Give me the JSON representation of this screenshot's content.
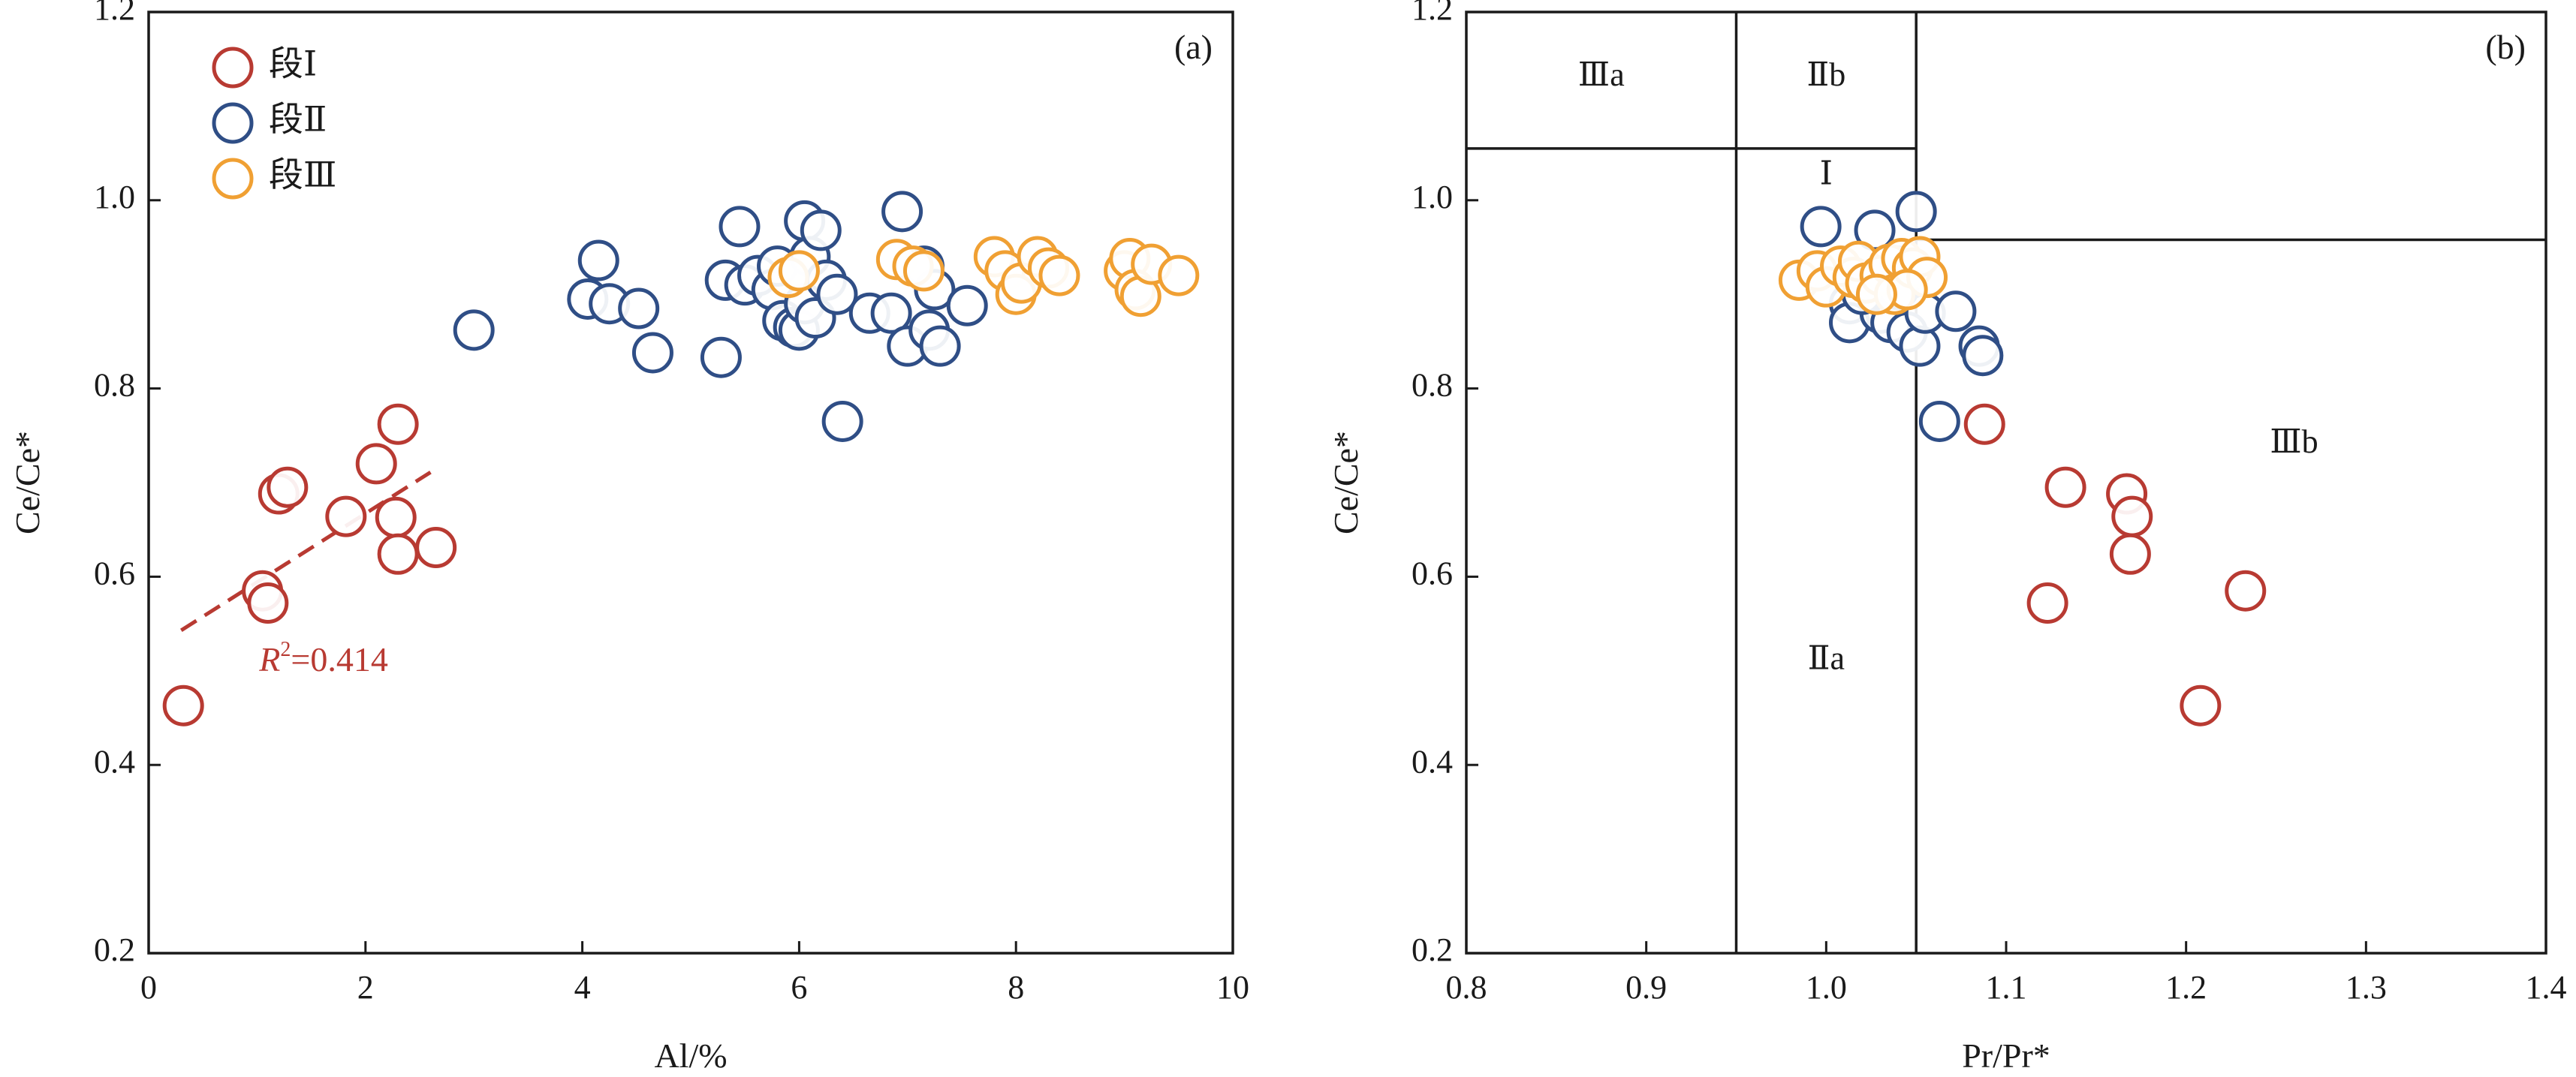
{
  "chart_data": [
    {
      "type": "scatter",
      "panel_label": "(a)",
      "xlabel": "Al/%",
      "ylabel": "Ce/Ce*",
      "xlim": [
        0,
        10
      ],
      "ylim": [
        0.2,
        1.2
      ],
      "x_ticks": [
        0,
        2,
        4,
        6,
        8,
        10
      ],
      "y_ticks": [
        0.2,
        0.4,
        0.6,
        0.8,
        1.0,
        1.2
      ],
      "x_tick_labels": [
        "0",
        "2",
        "4",
        "6",
        "8",
        "10"
      ],
      "y_tick_labels": [
        "0.2",
        "0.4",
        "0.6",
        "0.8",
        "1.0",
        "1.2"
      ],
      "legend_position": "top-left",
      "series": [
        {
          "name": "段Ⅰ",
          "color": "#b83a32",
          "points": [
            [
              0.32,
              0.463
            ],
            [
              1.05,
              0.585
            ],
            [
              1.1,
              0.572
            ],
            [
              1.2,
              0.688
            ],
            [
              1.28,
              0.695
            ],
            [
              1.82,
              0.664
            ],
            [
              2.1,
              0.72
            ],
            [
              2.3,
              0.762
            ],
            [
              2.28,
              0.663
            ],
            [
              2.3,
              0.624
            ],
            [
              2.65,
              0.631
            ]
          ]
        },
        {
          "name": "段Ⅱ",
          "color": "#2f4e86",
          "points": [
            [
              3.0,
              0.862
            ],
            [
              4.05,
              0.895
            ],
            [
              4.15,
              0.936
            ],
            [
              4.25,
              0.89
            ],
            [
              4.52,
              0.885
            ],
            [
              4.65,
              0.838
            ],
            [
              5.28,
              0.833
            ],
            [
              5.32,
              0.915
            ],
            [
              5.45,
              0.972
            ],
            [
              5.5,
              0.91
            ],
            [
              5.62,
              0.92
            ],
            [
              5.75,
              0.905
            ],
            [
              5.8,
              0.93
            ],
            [
              5.85,
              0.872
            ],
            [
              5.95,
              0.865
            ],
            [
              6.0,
              0.862
            ],
            [
              6.05,
              0.89
            ],
            [
              6.05,
              0.978
            ],
            [
              6.1,
              0.94
            ],
            [
              6.15,
              0.875
            ],
            [
              6.2,
              0.968
            ],
            [
              6.25,
              0.915
            ],
            [
              6.35,
              0.9
            ],
            [
              6.4,
              0.765
            ],
            [
              6.65,
              0.88
            ],
            [
              6.85,
              0.88
            ],
            [
              6.95,
              0.988
            ],
            [
              7.0,
              0.845
            ],
            [
              7.15,
              0.93
            ],
            [
              7.2,
              0.862
            ],
            [
              7.25,
              0.905
            ],
            [
              7.3,
              0.845
            ],
            [
              7.55,
              0.888
            ]
          ]
        },
        {
          "name": "段Ⅲ",
          "color": "#f0a033",
          "points": [
            [
              5.9,
              0.918
            ],
            [
              6.0,
              0.925
            ],
            [
              6.9,
              0.937
            ],
            [
              7.05,
              0.93
            ],
            [
              7.15,
              0.925
            ],
            [
              7.8,
              0.94
            ],
            [
              7.9,
              0.925
            ],
            [
              8.0,
              0.9
            ],
            [
              8.05,
              0.912
            ],
            [
              8.2,
              0.94
            ],
            [
              8.3,
              0.928
            ],
            [
              8.4,
              0.92
            ],
            [
              9.0,
              0.925
            ],
            [
              9.05,
              0.938
            ],
            [
              9.1,
              0.905
            ],
            [
              9.15,
              0.898
            ],
            [
              9.25,
              0.932
            ],
            [
              9.5,
              0.92
            ]
          ]
        }
      ],
      "trendline": {
        "series": "段Ⅰ",
        "x_range": [
          0.3,
          2.6
        ],
        "y_range": [
          0.543,
          0.711
        ],
        "style": "dashed"
      },
      "annotations": {
        "r2_symbol": "R",
        "r2_superscript": "2",
        "r2_value": "=0.414"
      }
    },
    {
      "type": "scatter",
      "panel_label": "(b)",
      "xlabel": "Pr/Pr*",
      "ylabel": "Ce/Ce*",
      "xlim": [
        0.8,
        1.4
      ],
      "ylim": [
        0.2,
        1.2
      ],
      "x_ticks": [
        0.8,
        0.9,
        1.0,
        1.1,
        1.2,
        1.3,
        1.4
      ],
      "y_ticks": [
        0.2,
        0.4,
        0.6,
        0.8,
        1.0,
        1.2
      ],
      "x_tick_labels": [
        "0.8",
        "0.9",
        "1.0",
        "1.1",
        "1.2",
        "1.3",
        "1.4"
      ],
      "y_tick_labels": [
        "0.2",
        "0.4",
        "0.6",
        "0.8",
        "1.0",
        "1.2"
      ],
      "series": [
        {
          "name": "段Ⅰ",
          "color": "#b83a32",
          "points": [
            [
              1.088,
              0.762
            ],
            [
              1.133,
              0.695
            ],
            [
              1.123,
              0.572
            ],
            [
              1.167,
              0.688
            ],
            [
              1.17,
              0.664
            ],
            [
              1.169,
              0.624
            ],
            [
              1.233,
              0.585
            ],
            [
              1.208,
              0.463
            ]
          ]
        },
        {
          "name": "段Ⅱ",
          "color": "#2f4e86",
          "points": [
            [
              0.997,
              0.972
            ],
            [
              1.027,
              0.968
            ],
            [
              1.05,
              0.988
            ],
            [
              1.04,
              0.93
            ],
            [
              1.013,
              0.89
            ],
            [
              1.013,
              0.87
            ],
            [
              1.03,
              0.88
            ],
            [
              1.036,
              0.87
            ],
            [
              1.045,
              0.86
            ],
            [
              1.052,
              0.845
            ],
            [
              1.055,
              0.88
            ],
            [
              1.072,
              0.882
            ],
            [
              1.085,
              0.845
            ],
            [
              1.087,
              0.835
            ],
            [
              1.063,
              0.765
            ],
            [
              1.02,
              0.9
            ],
            [
              1.04,
              0.905
            ]
          ]
        },
        {
          "name": "段Ⅲ",
          "color": "#f0a033",
          "points": [
            [
              0.985,
              0.915
            ],
            [
              0.995,
              0.925
            ],
            [
              1.0,
              0.908
            ],
            [
              1.008,
              0.93
            ],
            [
              1.015,
              0.918
            ],
            [
              1.018,
              0.935
            ],
            [
              1.022,
              0.912
            ],
            [
              1.03,
              0.92
            ],
            [
              1.035,
              0.932
            ],
            [
              1.038,
              0.9
            ],
            [
              1.042,
              0.938
            ],
            [
              1.048,
              0.928
            ],
            [
              1.052,
              0.94
            ],
            [
              1.056,
              0.918
            ],
            [
              1.045,
              0.905
            ],
            [
              1.028,
              0.9
            ]
          ]
        }
      ],
      "regions": {
        "lines": [
          {
            "x": [
              0.95,
              0.95
            ],
            "y": [
              0.2,
              1.2
            ]
          },
          {
            "x": [
              1.05,
              1.05
            ],
            "y": [
              0.2,
              1.2
            ]
          },
          {
            "x": [
              0.8,
              1.05
            ],
            "y": [
              1.055,
              1.055
            ]
          },
          {
            "x": [
              1.05,
              1.4
            ],
            "y": [
              0.958,
              0.958
            ]
          }
        ],
        "labels": [
          {
            "text": "Ⅲa",
            "x": 0.875,
            "y": 1.13
          },
          {
            "text": "Ⅱb",
            "x": 1.0,
            "y": 1.13
          },
          {
            "text": "Ⅰ",
            "x": 1.0,
            "y": 1.025
          },
          {
            "text": "Ⅲb",
            "x": 1.26,
            "y": 0.74
          },
          {
            "text": "Ⅱa",
            "x": 1.0,
            "y": 0.51
          }
        ]
      }
    }
  ]
}
